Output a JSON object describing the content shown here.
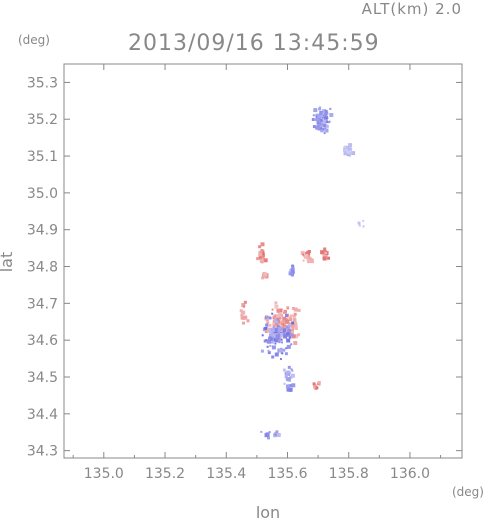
{
  "header": {
    "altitude_label": "ALT(km) 2.0",
    "timestamp": "2013/09/16 13:45:59"
  },
  "chart_data": {
    "type": "scatter",
    "title": "2013/09/16 13:45:59",
    "subtitle": "ALT(km) 2.0",
    "xlabel": "lon",
    "ylabel": "lat",
    "x_unit": "(deg)",
    "y_unit": "(deg)",
    "xlim": [
      134.87,
      136.17
    ],
    "ylim": [
      34.28,
      35.35
    ],
    "x_ticks": [
      "135.0",
      "135.2",
      "135.4",
      "135.6",
      "135.8",
      "136.0"
    ],
    "x_tick_values": [
      135.0,
      135.2,
      135.4,
      135.6,
      135.8,
      136.0
    ],
    "y_ticks": [
      "34.3",
      "34.4",
      "34.5",
      "34.6",
      "34.7",
      "34.8",
      "34.9",
      "35.0",
      "35.1",
      "35.2",
      "35.3"
    ],
    "y_tick_values": [
      34.3,
      34.4,
      34.5,
      34.6,
      34.7,
      34.8,
      34.9,
      35.0,
      35.1,
      35.2,
      35.3
    ],
    "grid": false,
    "colors": {
      "axis": "#888888",
      "positive": "#e06060",
      "negative": "#6060e0"
    },
    "clusters": [
      {
        "lon": 135.71,
        "lat": 35.2,
        "sign": "negative",
        "intensity": 0.55,
        "count": 70,
        "spread_lon": 0.025,
        "spread_lat": 0.03
      },
      {
        "lon": 135.79,
        "lat": 35.12,
        "sign": "negative",
        "intensity": 0.3,
        "count": 25,
        "spread_lon": 0.012,
        "spread_lat": 0.015
      },
      {
        "lon": 135.84,
        "lat": 34.92,
        "sign": "negative",
        "intensity": 0.2,
        "count": 4,
        "spread_lon": 0.008,
        "spread_lat": 0.008
      },
      {
        "lon": 135.51,
        "lat": 34.84,
        "sign": "positive",
        "intensity": 0.6,
        "count": 20,
        "spread_lon": 0.01,
        "spread_lat": 0.02
      },
      {
        "lon": 135.66,
        "lat": 34.83,
        "sign": "positive",
        "intensity": 0.6,
        "count": 25,
        "spread_lon": 0.015,
        "spread_lat": 0.02
      },
      {
        "lon": 135.72,
        "lat": 34.84,
        "sign": "positive",
        "intensity": 0.6,
        "count": 15,
        "spread_lon": 0.01,
        "spread_lat": 0.015
      },
      {
        "lon": 135.61,
        "lat": 34.79,
        "sign": "negative",
        "intensity": 0.5,
        "count": 15,
        "spread_lon": 0.012,
        "spread_lat": 0.012
      },
      {
        "lon": 135.52,
        "lat": 34.78,
        "sign": "positive",
        "intensity": 0.5,
        "count": 10,
        "spread_lon": 0.008,
        "spread_lat": 0.01
      },
      {
        "lon": 135.58,
        "lat": 34.65,
        "sign": "positive",
        "intensity": 0.5,
        "count": 110,
        "spread_lon": 0.05,
        "spread_lat": 0.045
      },
      {
        "lon": 135.56,
        "lat": 34.61,
        "sign": "negative",
        "intensity": 0.6,
        "count": 100,
        "spread_lon": 0.045,
        "spread_lat": 0.05
      },
      {
        "lon": 135.45,
        "lat": 34.68,
        "sign": "positive",
        "intensity": 0.6,
        "count": 12,
        "spread_lon": 0.015,
        "spread_lat": 0.025
      },
      {
        "lon": 135.6,
        "lat": 34.5,
        "sign": "negative",
        "intensity": 0.5,
        "count": 25,
        "spread_lon": 0.015,
        "spread_lat": 0.03
      },
      {
        "lon": 135.69,
        "lat": 34.48,
        "sign": "positive",
        "intensity": 0.6,
        "count": 8,
        "spread_lon": 0.012,
        "spread_lat": 0.008
      },
      {
        "lon": 135.54,
        "lat": 34.35,
        "sign": "negative",
        "intensity": 0.5,
        "count": 10,
        "spread_lon": 0.03,
        "spread_lat": 0.008
      }
    ]
  }
}
